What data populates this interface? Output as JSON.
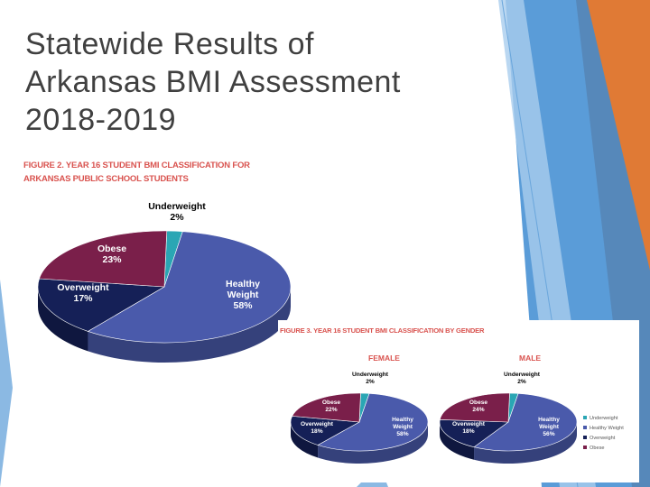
{
  "slide": {
    "title_lines": [
      "Statewide Results of",
      "Arkansas BMI Assessment",
      "2018-2019"
    ]
  },
  "colors": {
    "underweight": "#2aa6b4",
    "healthy": "#4a5aab",
    "overweight": "#152057",
    "obese": "#7a1f4a",
    "caption": "#d9534f",
    "title": "#404040",
    "deco_orange": "#e07a35",
    "deco_blue": "#3d8bd1"
  },
  "figure2": {
    "caption_lines": [
      "FIGURE 2. YEAR 16 STUDENT BMI CLASSIFICATION FOR",
      "ARKANSAS PUBLIC SCHOOL STUDENTS"
    ]
  },
  "figure3": {
    "caption": "FIGURE 3. YEAR 16 STUDENT BMI CLASSIFICATION BY GENDER",
    "legend": [
      "Underweight",
      "Healthy Weight",
      "Overweight",
      "Obese"
    ]
  },
  "chart_data": [
    {
      "type": "pie",
      "title": "",
      "categories": [
        "Underweight",
        "Healthy Weight",
        "Overweight",
        "Obese"
      ],
      "labels": [
        [
          "Underweight",
          "2%"
        ],
        [
          "Healthy",
          "Weight",
          "58%"
        ],
        [
          "Overweight",
          "17%"
        ],
        [
          "Obese",
          "23%"
        ]
      ],
      "values": [
        2,
        58,
        17,
        23
      ],
      "legend": "none"
    },
    {
      "type": "pie",
      "title": "FEMALE",
      "categories": [
        "Underweight",
        "Healthy Weight",
        "Overweight",
        "Obese"
      ],
      "labels": [
        [
          "Underweight",
          "2%"
        ],
        [
          "Healthy",
          "Weight",
          "58%"
        ],
        [
          "Overweight",
          "18%"
        ],
        [
          "Obese",
          "22%"
        ]
      ],
      "values": [
        2,
        58,
        18,
        22
      ],
      "legend": "none"
    },
    {
      "type": "pie",
      "title": "MALE",
      "categories": [
        "Underweight",
        "Healthy Weight",
        "Overweight",
        "Obese"
      ],
      "labels": [
        [
          "Underweight",
          "2%"
        ],
        [
          "Healthy",
          "Weight",
          "56%"
        ],
        [
          "Overweight",
          "18%"
        ],
        [
          "Obese",
          "24%"
        ]
      ],
      "values": [
        2,
        56,
        18,
        24
      ],
      "legend": "right"
    }
  ]
}
